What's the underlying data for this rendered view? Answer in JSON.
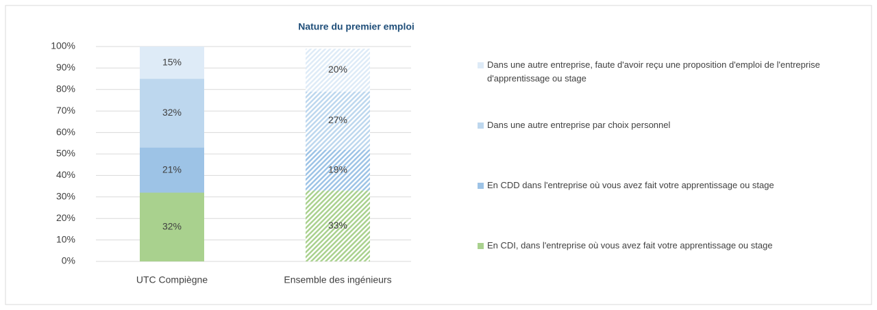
{
  "chart_data": {
    "type": "stacked_bar",
    "title": "Nature du premier emploi",
    "categories": [
      "UTC Compiègne",
      "Ensemble des ingénieurs"
    ],
    "hatched": [
      false,
      true
    ],
    "series": [
      {
        "name": "En CDI, dans l'entreprise où vous avez fait votre apprentissage ou stage",
        "color": "#a9d18e",
        "values": [
          32,
          33
        ],
        "value_labels": [
          "32%",
          "33%"
        ]
      },
      {
        "name": "En CDD dans l'entreprise où vous avez fait votre apprentissage ou stage",
        "color": "#9dc3e6",
        "values": [
          21,
          19
        ],
        "value_labels": [
          "21%",
          "19%"
        ]
      },
      {
        "name": "Dans une autre entreprise par choix personnel",
        "color": "#bdd7ee",
        "values": [
          32,
          27
        ],
        "value_labels": [
          "32%",
          "27%"
        ]
      },
      {
        "name": "Dans une autre entreprise, faute d'avoir reçu une proposition d'emploi de l'entreprise d'apprentissage ou stage",
        "color": "#deebf7",
        "values": [
          15,
          20
        ],
        "value_labels": [
          "15%",
          "20%"
        ]
      }
    ],
    "ylim": [
      0,
      100
    ],
    "yticks": [
      {
        "value": 0,
        "label": "0%"
      },
      {
        "value": 10,
        "label": "10%"
      },
      {
        "value": 20,
        "label": "20%"
      },
      {
        "value": 30,
        "label": "30%"
      },
      {
        "value": 40,
        "label": "40%"
      },
      {
        "value": 50,
        "label": "50%"
      },
      {
        "value": 60,
        "label": "60%"
      },
      {
        "value": 70,
        "label": "70%"
      },
      {
        "value": 80,
        "label": "80%"
      },
      {
        "value": 90,
        "label": "90%"
      },
      {
        "value": 100,
        "label": "100%"
      }
    ],
    "grid": true,
    "legend": "right"
  }
}
